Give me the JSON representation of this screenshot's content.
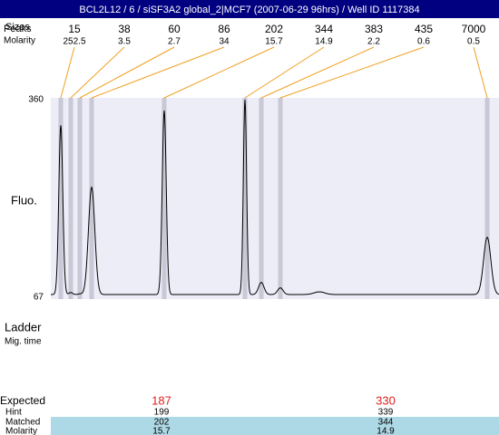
{
  "header": {
    "title": "BCL2L12 / 6 / siSF3A2 global_2|MCF7 (2007-06-29 96hrs) / Well ID 1117384"
  },
  "top_labels": {
    "peaks": "Peaks",
    "sizes": "Sizes",
    "molarity": "Molarity"
  },
  "peaks": [
    {
      "size": "15",
      "molarity": "252.5"
    },
    {
      "size": "38",
      "molarity": "3.5"
    },
    {
      "size": "60",
      "molarity": "2.7"
    },
    {
      "size": "86",
      "molarity": "34"
    },
    {
      "size": "202",
      "molarity": "15.7"
    },
    {
      "size": "344",
      "molarity": "14.9"
    },
    {
      "size": "383",
      "molarity": "2.2"
    },
    {
      "size": "435",
      "molarity": "0.6"
    },
    {
      "size": "7000",
      "molarity": "0.5"
    }
  ],
  "chart_data": {
    "type": "line",
    "ylabel": "Fluo.",
    "ylim": [
      67,
      360
    ],
    "yticks": [
      67,
      360
    ],
    "color": "#000000",
    "baseline": 71,
    "peak_heights": [
      322,
      74,
      72,
      230,
      344,
      360,
      89,
      81,
      156
    ]
  },
  "lower_labels": {
    "ladder": "Ladder",
    "mig_time": "Mig. time"
  },
  "table": {
    "row_labels": [
      "Expected",
      "Hint",
      "Matched",
      "Molarity"
    ],
    "columns": [
      [
        "187",
        "199",
        "202",
        "15.7"
      ],
      [
        "330",
        "339",
        "344",
        "14.9"
      ]
    ]
  }
}
